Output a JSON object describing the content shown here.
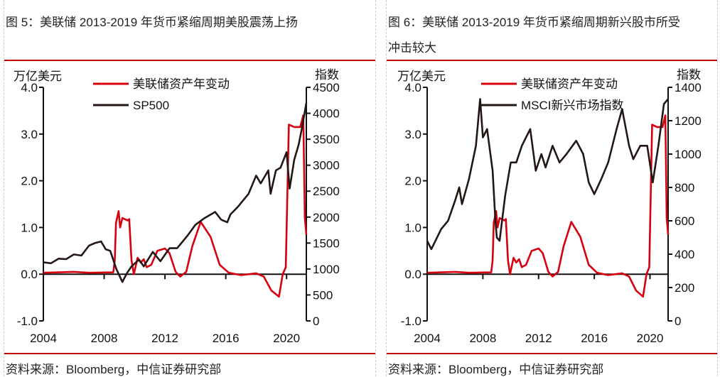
{
  "chart_data": [
    {
      "type": "line",
      "title": "图 5：美联储 2013-2019 年货币紧缩周期美股震荡上扬",
      "source": "资料来源：Bloomberg，中信证券研究部",
      "left_axis_label": "万亿美元",
      "right_axis_label": "指数",
      "ylim_left": [
        -1.0,
        4.0
      ],
      "ylim_right": [
        0,
        4500
      ],
      "left_ticks": [
        "4.0",
        "3.0",
        "2.0",
        "1.0",
        "0.0",
        "-1.0"
      ],
      "left_tick_values": [
        4,
        3,
        2,
        1,
        0,
        -1
      ],
      "right_ticks": [
        "4500",
        "4000",
        "3500",
        "3000",
        "2500",
        "2000",
        "1500",
        "1000",
        "500",
        "0"
      ],
      "right_tick_values": [
        4500,
        4000,
        3500,
        3000,
        2500,
        2000,
        1500,
        1000,
        500,
        0
      ],
      "x_ticks": [
        "2004",
        "2008",
        "2012",
        "2016",
        "2020"
      ],
      "x_tick_values": [
        2004,
        2008,
        2012,
        2016,
        2020
      ],
      "xlim": [
        2004,
        2021.3
      ],
      "legend_placement": "top-center",
      "series": [
        {
          "name": "美联储资产年变动",
          "axis": "left",
          "color": "#d7000f",
          "points": [
            [
              2004,
              0.03
            ],
            [
              2005,
              0.04
            ],
            [
              2006,
              0.05
            ],
            [
              2007,
              0.03
            ],
            [
              2008.6,
              0.04
            ],
            [
              2008.7,
              0.3
            ],
            [
              2008.78,
              1.1
            ],
            [
              2008.95,
              1.35
            ],
            [
              2009.05,
              1.0
            ],
            [
              2009.2,
              1.2
            ],
            [
              2009.55,
              1.15
            ],
            [
              2009.65,
              1.18
            ],
            [
              2009.8,
              0.3
            ],
            [
              2009.95,
              0.0
            ],
            [
              2010.2,
              0.35
            ],
            [
              2010.4,
              0.25
            ],
            [
              2010.6,
              0.32
            ],
            [
              2010.8,
              0.15
            ],
            [
              2011.1,
              0.2
            ],
            [
              2011.5,
              0.5
            ],
            [
              2012.0,
              0.55
            ],
            [
              2012.3,
              0.45
            ],
            [
              2012.7,
              0.05
            ],
            [
              2013.0,
              -0.05
            ],
            [
              2013.4,
              0.05
            ],
            [
              2013.8,
              0.6
            ],
            [
              2014.35,
              1.12
            ],
            [
              2015.0,
              0.8
            ],
            [
              2015.6,
              0.2
            ],
            [
              2016.2,
              0.03
            ],
            [
              2017.0,
              -0.02
            ],
            [
              2018.0,
              0.02
            ],
            [
              2018.5,
              -0.05
            ],
            [
              2019.0,
              -0.35
            ],
            [
              2019.5,
              -0.48
            ],
            [
              2019.75,
              0.0
            ],
            [
              2019.95,
              0.15
            ],
            [
              2020.15,
              3.2
            ],
            [
              2020.5,
              3.15
            ],
            [
              2020.9,
              3.15
            ],
            [
              2021.1,
              3.4
            ],
            [
              2021.2,
              1.2
            ],
            [
              2021.3,
              0.85
            ]
          ]
        },
        {
          "name": "SP500",
          "axis": "right",
          "color": "#231815",
          "points": [
            [
              2004,
              1130
            ],
            [
              2004.5,
              1110
            ],
            [
              2005,
              1200
            ],
            [
              2005.5,
              1190
            ],
            [
              2006,
              1280
            ],
            [
              2006.5,
              1260
            ],
            [
              2007,
              1450
            ],
            [
              2007.4,
              1500
            ],
            [
              2007.8,
              1530
            ],
            [
              2008.1,
              1380
            ],
            [
              2008.4,
              1350
            ],
            [
              2008.8,
              1000
            ],
            [
              2009.2,
              750
            ],
            [
              2009.5,
              920
            ],
            [
              2009.8,
              1050
            ],
            [
              2010.3,
              1180
            ],
            [
              2010.6,
              1050
            ],
            [
              2011.2,
              1330
            ],
            [
              2011.7,
              1150
            ],
            [
              2012.3,
              1400
            ],
            [
              2012.8,
              1400
            ],
            [
              2013.5,
              1650
            ],
            [
              2014.0,
              1850
            ],
            [
              2014.6,
              1980
            ],
            [
              2015.3,
              2100
            ],
            [
              2015.7,
              1950
            ],
            [
              2016.1,
              1900
            ],
            [
              2016.3,
              2050
            ],
            [
              2016.8,
              2200
            ],
            [
              2017.5,
              2450
            ],
            [
              2018.0,
              2800
            ],
            [
              2018.3,
              2650
            ],
            [
              2018.8,
              2900
            ],
            [
              2018.95,
              2450
            ],
            [
              2019.3,
              2900
            ],
            [
              2019.6,
              2950
            ],
            [
              2020.0,
              3250
            ],
            [
              2020.2,
              2550
            ],
            [
              2020.5,
              3100
            ],
            [
              2020.8,
              3400
            ],
            [
              2021.0,
              3700
            ],
            [
              2021.3,
              4200
            ]
          ]
        }
      ]
    },
    {
      "type": "line",
      "title": "图 6：美联储 2013-2019 年货币紧缩周期新兴股市所受冲击较大",
      "title_line1": "图 6：美联储 2013-2019 年货币紧缩周期新兴股市所受",
      "title_line2": "冲击较大",
      "source": "资料来源：Bloomberg，中信证券研究部",
      "left_axis_label": "万亿美元",
      "right_axis_label": "指数",
      "ylim_left": [
        -1.0,
        4.0
      ],
      "ylim_right": [
        0,
        1400
      ],
      "left_ticks": [
        "4.0",
        "3.0",
        "2.0",
        "1.0",
        "0.0",
        "-1.0"
      ],
      "left_tick_values": [
        4,
        3,
        2,
        1,
        0,
        -1
      ],
      "right_ticks": [
        "1400",
        "1200",
        "1000",
        "800",
        "600",
        "400",
        "200",
        "0"
      ],
      "right_tick_values": [
        1400,
        1200,
        1000,
        800,
        600,
        400,
        200,
        0
      ],
      "x_ticks": [
        "2004",
        "2008",
        "2012",
        "2016",
        "2020"
      ],
      "x_tick_values": [
        2004,
        2008,
        2012,
        2016,
        2020
      ],
      "xlim": [
        2004,
        2021.3
      ],
      "legend_placement": "top-center",
      "series": [
        {
          "name": "美联储资产年变动",
          "axis": "left",
          "color": "#d7000f",
          "points": [
            [
              2004,
              0.03
            ],
            [
              2005,
              0.04
            ],
            [
              2006,
              0.05
            ],
            [
              2007,
              0.03
            ],
            [
              2008.6,
              0.04
            ],
            [
              2008.7,
              0.3
            ],
            [
              2008.78,
              1.1
            ],
            [
              2008.95,
              1.35
            ],
            [
              2009.05,
              1.0
            ],
            [
              2009.2,
              1.2
            ],
            [
              2009.55,
              1.15
            ],
            [
              2009.65,
              1.18
            ],
            [
              2009.8,
              0.3
            ],
            [
              2009.95,
              0.0
            ],
            [
              2010.2,
              0.35
            ],
            [
              2010.4,
              0.25
            ],
            [
              2010.6,
              0.32
            ],
            [
              2010.8,
              0.15
            ],
            [
              2011.1,
              0.2
            ],
            [
              2011.5,
              0.5
            ],
            [
              2012.0,
              0.55
            ],
            [
              2012.3,
              0.45
            ],
            [
              2012.7,
              0.05
            ],
            [
              2013.0,
              -0.05
            ],
            [
              2013.4,
              0.05
            ],
            [
              2013.8,
              0.6
            ],
            [
              2014.35,
              1.12
            ],
            [
              2015.0,
              0.8
            ],
            [
              2015.6,
              0.2
            ],
            [
              2016.2,
              0.03
            ],
            [
              2017.0,
              -0.02
            ],
            [
              2018.0,
              0.02
            ],
            [
              2018.5,
              -0.05
            ],
            [
              2019.0,
              -0.35
            ],
            [
              2019.5,
              -0.48
            ],
            [
              2019.75,
              0.0
            ],
            [
              2019.95,
              0.15
            ],
            [
              2020.15,
              3.2
            ],
            [
              2020.5,
              3.15
            ],
            [
              2020.9,
              3.15
            ],
            [
              2021.1,
              3.4
            ],
            [
              2021.2,
              1.2
            ],
            [
              2021.3,
              0.85
            ]
          ]
        },
        {
          "name": "MSCI新兴市场指数",
          "axis": "right",
          "color": "#231815",
          "points": [
            [
              2004,
              480
            ],
            [
              2004.3,
              430
            ],
            [
              2005,
              550
            ],
            [
              2005.5,
              600
            ],
            [
              2006.0,
              720
            ],
            [
              2006.3,
              800
            ],
            [
              2006.5,
              700
            ],
            [
              2007.0,
              850
            ],
            [
              2007.5,
              1050
            ],
            [
              2007.8,
              1330
            ],
            [
              2008.0,
              1100
            ],
            [
              2008.3,
              1150
            ],
            [
              2008.7,
              900
            ],
            [
              2008.9,
              600
            ],
            [
              2009.0,
              500
            ],
            [
              2009.2,
              480
            ],
            [
              2009.6,
              750
            ],
            [
              2010.0,
              950
            ],
            [
              2010.4,
              950
            ],
            [
              2010.8,
              1050
            ],
            [
              2011.1,
              1100
            ],
            [
              2011.4,
              1150
            ],
            [
              2011.8,
              900
            ],
            [
              2012.2,
              1000
            ],
            [
              2012.5,
              920
            ],
            [
              2013.0,
              1050
            ],
            [
              2013.5,
              950
            ],
            [
              2014.0,
              1000
            ],
            [
              2014.7,
              1080
            ],
            [
              2015.2,
              1000
            ],
            [
              2015.6,
              830
            ],
            [
              2016.0,
              760
            ],
            [
              2016.5,
              850
            ],
            [
              2017.0,
              950
            ],
            [
              2017.6,
              1150
            ],
            [
              2018.0,
              1270
            ],
            [
              2018.5,
              1050
            ],
            [
              2018.8,
              970
            ],
            [
              2019.3,
              1050
            ],
            [
              2019.8,
              1050
            ],
            [
              2020.2,
              830
            ],
            [
              2020.6,
              1050
            ],
            [
              2021.0,
              1300
            ],
            [
              2021.3,
              1330
            ]
          ]
        }
      ]
    }
  ]
}
